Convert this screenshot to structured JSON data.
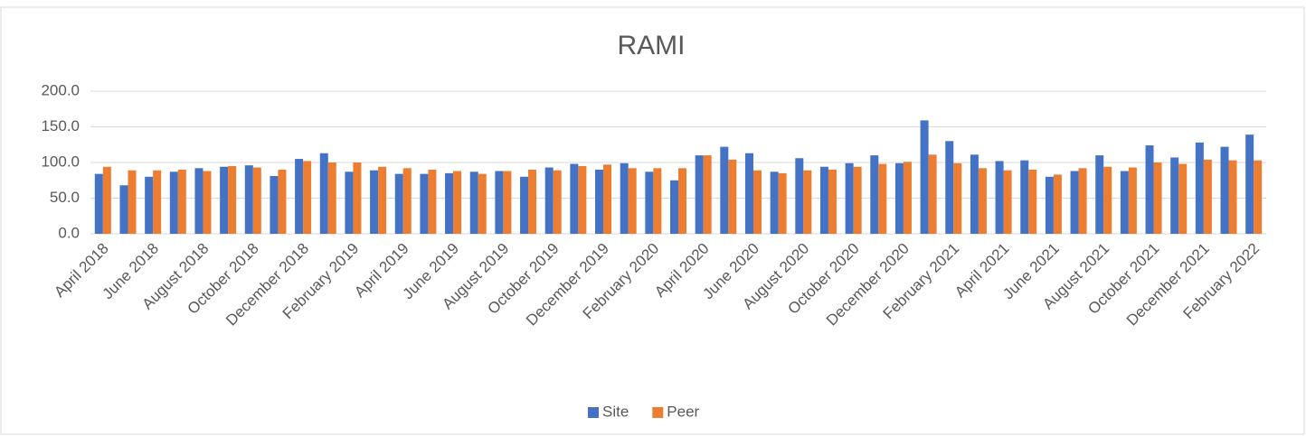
{
  "chart_data": {
    "type": "bar",
    "title": "RAMI",
    "categories": [
      "April 2018",
      null,
      "June 2018",
      null,
      "August 2018",
      null,
      "October 2018",
      null,
      "December 2018",
      null,
      "February 2019",
      null,
      "April 2019",
      null,
      "June 2019",
      null,
      "August 2019",
      null,
      "October 2019",
      null,
      "December 2019",
      null,
      "February 2020",
      null,
      "April 2020",
      null,
      "June 2020",
      null,
      "August 2020",
      null,
      "October 2020",
      null,
      "December 2020",
      null,
      "February 2021",
      null,
      "April 2021",
      null,
      "June 2021",
      null,
      "August 2021",
      null,
      "October 2021",
      null,
      "December 2021",
      null,
      "February 2022"
    ],
    "series": [
      {
        "name": "Site",
        "color": "#4472c4",
        "values": [
          84,
          68,
          80,
          87,
          92,
          94,
          96,
          81,
          105,
          113,
          87,
          89,
          84,
          84,
          85,
          87,
          88,
          80,
          93,
          98,
          90,
          99,
          87,
          75,
          110,
          122,
          113,
          87,
          106,
          94,
          99,
          110,
          99,
          159,
          130,
          111,
          102,
          103,
          80,
          88,
          110,
          88,
          124,
          107,
          128,
          122,
          139
        ]
      },
      {
        "name": "Peer",
        "color": "#ed7d31",
        "values": [
          94,
          89,
          89,
          90,
          88,
          95,
          93,
          90,
          102,
          100,
          100,
          94,
          92,
          90,
          88,
          84,
          88,
          90,
          89,
          95,
          97,
          92,
          92,
          92,
          110,
          104,
          89,
          85,
          89,
          90,
          94,
          98,
          101,
          111,
          99,
          92,
          89,
          90,
          83,
          92,
          94,
          93,
          100,
          98,
          104,
          103,
          103
        ]
      }
    ],
    "ylim": [
      0,
      200
    ],
    "yticks": [
      {
        "value": 0,
        "label": "0.0"
      },
      {
        "value": 50,
        "label": "50.0"
      },
      {
        "value": 100,
        "label": "100.0"
      },
      {
        "value": 150,
        "label": "150.0"
      },
      {
        "value": 200,
        "label": "200.0"
      }
    ],
    "grid": true,
    "legend": "bottom"
  }
}
